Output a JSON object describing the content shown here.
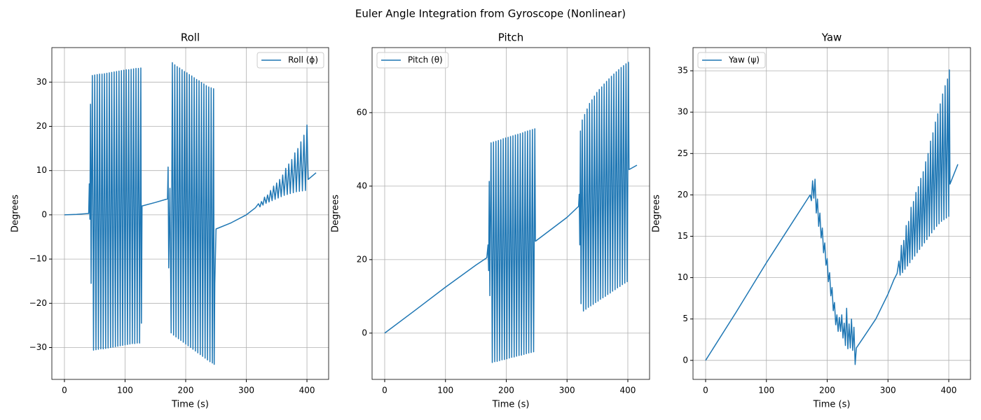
{
  "title": "Euler Angle Integration from Gyroscope (Nonlinear)",
  "chart_data": [
    {
      "type": "line",
      "title": "Roll",
      "xlabel": "Time (s)",
      "ylabel": "Degrees",
      "x": [
        0,
        20,
        40,
        41,
        42,
        43,
        44,
        46,
        48,
        50,
        52,
        54,
        56,
        58,
        60,
        62,
        64,
        66,
        68,
        70,
        72,
        74,
        76,
        78,
        80,
        82,
        84,
        86,
        88,
        90,
        92,
        94,
        96,
        98,
        100,
        102,
        104,
        106,
        108,
        110,
        112,
        114,
        116,
        118,
        120,
        122,
        124,
        126,
        127,
        128,
        150,
        170,
        171,
        172,
        174,
        176,
        178,
        180,
        182,
        184,
        186,
        188,
        190,
        192,
        194,
        196,
        198,
        200,
        202,
        204,
        206,
        208,
        210,
        212,
        214,
        216,
        218,
        220,
        222,
        224,
        226,
        228,
        230,
        232,
        234,
        236,
        238,
        240,
        242,
        244,
        246,
        247,
        248,
        250,
        275,
        300,
        315,
        320,
        322.5,
        325,
        327.5,
        330,
        332.5,
        335,
        337.5,
        340,
        342.5,
        345,
        347.5,
        350,
        352.5,
        355,
        357.5,
        360,
        362.5,
        365,
        367.5,
        370,
        372.5,
        375,
        377.5,
        380,
        382.5,
        385,
        387.5,
        390,
        392.5,
        395,
        397.5,
        400,
        402,
        415
      ],
      "series": [
        {
          "name": "Roll (ϕ)",
          "color": "#1f77b4",
          "values": [
            0,
            0.1,
            0.3,
            7.0,
            -1.0,
            25.0,
            -15.5,
            31.5,
            -30.6,
            31.6,
            -30.5,
            31.7,
            -30.4,
            31.8,
            -30.3,
            31.8,
            -30.3,
            31.9,
            -30.2,
            32.0,
            -30.1,
            32.1,
            -30.0,
            32.2,
            -29.9,
            32.3,
            -29.8,
            32.4,
            -29.7,
            32.5,
            -29.6,
            32.6,
            -29.5,
            32.7,
            -29.4,
            32.8,
            -29.3,
            32.8,
            -29.2,
            32.9,
            -29.1,
            33.0,
            -29.1,
            33.1,
            -29.0,
            33.1,
            -29.0,
            33.2,
            -24.5,
            2.0,
            2.8,
            3.6,
            10.8,
            -12.0,
            6.0,
            -26.7,
            34.4,
            -27.2,
            33.9,
            -27.6,
            33.5,
            -28.0,
            33.2,
            -28.4,
            32.8,
            -28.8,
            32.4,
            -29.2,
            32.1,
            -29.6,
            31.7,
            -30.0,
            31.4,
            -30.4,
            31.0,
            -30.8,
            30.6,
            -31.2,
            30.3,
            -31.6,
            29.9,
            -32.0,
            29.6,
            -32.4,
            29.2,
            -32.8,
            28.9,
            -33.2,
            28.7,
            -33.5,
            28.5,
            -33.8,
            -15.5,
            -3.2,
            -1.8,
            0,
            1.6,
            2.5,
            1.8,
            3,
            2.2,
            4,
            2.6,
            4.5,
            2.9,
            5.5,
            3.2,
            6.5,
            3.5,
            7.2,
            3.8,
            8,
            4.1,
            9,
            4.4,
            10.5,
            4.6,
            11.5,
            4.8,
            12.5,
            5.0,
            14,
            5.2,
            15,
            5.3,
            16.5,
            5.4,
            18,
            5.5,
            20.3,
            8.0,
            9.5
          ]
        }
      ],
      "xlim": [
        -20.75,
        435.75
      ],
      "ylim": [
        -37.2,
        37.8
      ],
      "xticks": [
        0,
        100,
        200,
        300,
        400
      ],
      "yticks": [
        {
          "value": -30,
          "label": "−30"
        },
        {
          "value": -20,
          "label": "−20"
        },
        {
          "value": -10,
          "label": "−10"
        },
        0,
        10,
        20,
        30
      ],
      "grid": true,
      "legend": "upper right"
    },
    {
      "type": "line",
      "title": "Pitch",
      "xlabel": "Time (s)",
      "ylabel": "Degrees",
      "x": [
        0,
        50,
        100,
        150,
        168,
        170,
        171,
        172,
        173,
        175,
        177,
        179,
        181,
        183,
        185,
        187,
        189,
        191,
        193,
        195,
        197,
        199,
        201,
        203,
        205,
        207,
        209,
        211,
        213,
        215,
        217,
        219,
        221,
        223,
        225,
        227,
        229,
        231,
        233,
        235,
        237,
        239,
        241,
        243,
        245,
        247,
        248,
        300,
        319,
        320,
        321,
        322,
        323,
        325,
        327,
        329,
        331,
        333,
        335,
        337,
        339,
        341,
        343,
        345,
        347,
        349,
        351,
        353,
        355,
        357,
        359,
        361,
        363,
        365,
        367,
        369,
        371,
        373,
        375,
        377,
        379,
        381,
        383,
        385,
        387,
        389,
        391,
        393,
        395,
        397,
        399,
        401,
        402,
        415
      ],
      "series": [
        {
          "name": "Pitch (θ)",
          "color": "#1f77b4",
          "values": [
            0,
            6.2,
            12.5,
            18.5,
            20.5,
            24,
            17,
            41.3,
            10.2,
            51.8,
            -8.0,
            52.0,
            -7.8,
            52.2,
            -7.7,
            52.4,
            -7.5,
            52.6,
            -7.3,
            52.9,
            -7.2,
            53.1,
            -7.0,
            53.3,
            -6.8,
            53.5,
            -6.6,
            53.7,
            -6.5,
            53.9,
            -6.3,
            54.1,
            -6.1,
            54.3,
            -6.0,
            54.5,
            -5.8,
            54.8,
            -5.6,
            55.0,
            -5.4,
            55.2,
            -5.3,
            55.4,
            -5.1,
            55.6,
            25.0,
            31.5,
            34.5,
            37.8,
            24,
            55,
            8,
            58.0,
            6.0,
            59.5,
            6.5,
            61.0,
            7.0,
            62.5,
            7.4,
            63.5,
            7.8,
            64.5,
            8.3,
            65.5,
            8.7,
            66.3,
            9.2,
            67.0,
            9.6,
            67.8,
            10.0,
            68.5,
            10.5,
            69.2,
            10.9,
            69.9,
            11.4,
            70.5,
            11.8,
            71.1,
            12.3,
            71.7,
            12.7,
            72.3,
            13.2,
            72.8,
            13.6,
            73.3,
            14.0,
            73.7,
            44.5,
            45.7
          ]
        }
      ],
      "xlim": [
        -20.75,
        435.75
      ],
      "ylim": [
        -12.6,
        77.7
      ],
      "xticks": [
        0,
        100,
        200,
        300,
        400
      ],
      "yticks": [
        0,
        20,
        40,
        60
      ],
      "grid": true,
      "legend": "upper left"
    },
    {
      "type": "line",
      "title": "Yaw",
      "xlabel": "Time (s)",
      "ylabel": "Degrees",
      "x": [
        0,
        50,
        100,
        150,
        172,
        174,
        176,
        178,
        180,
        182,
        184,
        186,
        188,
        190,
        192,
        194,
        196,
        198,
        200,
        202,
        204,
        206,
        208,
        210,
        212,
        214,
        216,
        218,
        220,
        222,
        224,
        226,
        228,
        230,
        232,
        234,
        236,
        238,
        240,
        242,
        244,
        246,
        248,
        260,
        280,
        300,
        310,
        315,
        318,
        320,
        322,
        324,
        326,
        328,
        330,
        332,
        334,
        336,
        338,
        340,
        342,
        344,
        346,
        348,
        350,
        352,
        354,
        356,
        358,
        360,
        362,
        364,
        366,
        368,
        370,
        372,
        374,
        376,
        378,
        380,
        382,
        384,
        386,
        388,
        390,
        392,
        394,
        396,
        398,
        400,
        401,
        402,
        415
      ],
      "series": [
        {
          "name": "Yaw (ψ)",
          "color": "#1f77b4",
          "values": [
            0,
            5.8,
            11.8,
            17.5,
            20,
            19.3,
            21.7,
            19.6,
            21.9,
            17.8,
            19.5,
            16.2,
            17.8,
            14.8,
            16,
            13,
            14.2,
            11.5,
            12.3,
            9.5,
            10.6,
            7.8,
            8.8,
            6,
            7,
            4.3,
            5.5,
            3.5,
            5.2,
            3.5,
            5.5,
            2.7,
            4.5,
            1.8,
            6.3,
            1.4,
            4.4,
            1.5,
            5.0,
            1.2,
            4.0,
            -0.5,
            1.5,
            2.8,
            5,
            8,
            9.8,
            10.5,
            12,
            10.3,
            13.9,
            10.6,
            14.5,
            11,
            16.3,
            11.4,
            16.8,
            11.8,
            18.5,
            12.2,
            19.2,
            12.6,
            20.3,
            13,
            21,
            13.4,
            22,
            13.8,
            22.8,
            14.2,
            24,
            14.6,
            25,
            15,
            26.5,
            15.4,
            27.5,
            15.8,
            28.8,
            16.2,
            29.8,
            16.5,
            31,
            16.8,
            32.2,
            17,
            33.2,
            17.2,
            34,
            17.4,
            35.1,
            21.3,
            23.7
          ]
        }
      ],
      "xlim": [
        -20.75,
        435.75
      ],
      "ylim": [
        -2.3,
        37.8
      ],
      "xticks": [
        0,
        100,
        200,
        300,
        400
      ],
      "yticks": [
        0,
        5,
        10,
        15,
        20,
        25,
        30,
        35
      ],
      "grid": true,
      "legend": "upper left"
    }
  ]
}
